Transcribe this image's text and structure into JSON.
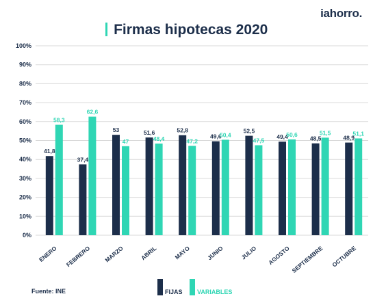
{
  "brand": "iahorro.",
  "title": "Firmas hipotecas 2020",
  "source": "Fuente: INE",
  "colors": {
    "fijas": "#1c2e4a",
    "variables": "#2fd6b4",
    "grid": "#d9d9d9",
    "text": "#1c2e4a"
  },
  "chart_data": {
    "type": "bar",
    "title": "Firmas hipotecas 2020",
    "categories": [
      "ENERO",
      "FEBRERO",
      "MARZO",
      "ABRIL",
      "MAYO",
      "JUNIO",
      "JULIO",
      "AGOSTO",
      "SEPTIEMBRE",
      "OCTUBRE"
    ],
    "series": [
      {
        "name": "FIJAS",
        "values": [
          41.8,
          37.4,
          53,
          51.6,
          52.8,
          49.6,
          52.5,
          49.4,
          48.5,
          48.9
        ],
        "labels": [
          "41,8",
          "37,4",
          "53",
          "51,6",
          "52,8",
          "49,6",
          "52,5",
          "49,4",
          "48,5",
          "48,9"
        ]
      },
      {
        "name": "VARIABLES",
        "values": [
          58.3,
          62.6,
          47,
          48.4,
          47.2,
          50.4,
          47.5,
          50.6,
          51.5,
          51.1
        ],
        "labels": [
          "58,3",
          "62,6",
          "47",
          "48,4",
          "47,2",
          "50,4",
          "47,5",
          "50,6",
          "51,5",
          "51,1"
        ]
      }
    ],
    "ylim": [
      0,
      100
    ],
    "yticks": [
      "0%",
      "10%",
      "20%",
      "30%",
      "40%",
      "50%",
      "60%",
      "70%",
      "80%",
      "90%",
      "100%"
    ],
    "grid": true,
    "legend_position": "bottom"
  }
}
